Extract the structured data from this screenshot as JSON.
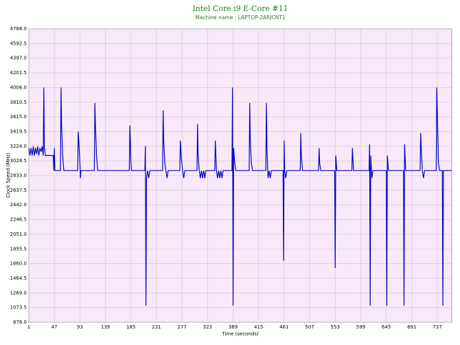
{
  "chart_data": {
    "type": "line",
    "title": "Intel Core i9 E-Core #11",
    "subtitle": "Machine name : LAPTOP-2ARJCNT1",
    "x_label": "Time (seconds)",
    "y_label": "Clock Speed (MHz)",
    "xlim": [
      1,
      763
    ],
    "xticks": [
      1,
      47,
      93,
      139,
      185,
      231,
      277,
      323,
      369,
      415,
      461,
      507,
      553,
      599,
      645,
      691,
      737
    ],
    "ylim": [
      878,
      4788
    ],
    "yticks": [
      {
        "value": 878,
        "label": "878.0"
      },
      1073.5,
      {
        "value": 1269,
        "label": "1269.0"
      },
      1464.5,
      {
        "value": 1660,
        "label": "1660.0"
      },
      1855.5,
      {
        "value": 2051,
        "label": "2051.0"
      },
      2246.5,
      {
        "value": 2442,
        "label": "2442.0"
      },
      2637.5,
      {
        "value": 2833,
        "label": "2833.0"
      },
      3028.5,
      {
        "value": 3224,
        "label": "3224.0"
      },
      3419.5,
      {
        "value": 3615,
        "label": "3615.0"
      },
      3810.5,
      {
        "value": 4006,
        "label": "4006.0"
      },
      4201.5,
      {
        "value": 4397,
        "label": "4397.0"
      },
      4592.5,
      {
        "value": 4788,
        "label": "4788.0"
      }
    ],
    "grid": true,
    "x": [
      1,
      3,
      5,
      7,
      9,
      11,
      13,
      15,
      17,
      19,
      21,
      23,
      25,
      27,
      28,
      29,
      31,
      45,
      46,
      47,
      48,
      58,
      59,
      60,
      62,
      64,
      89,
      90,
      91,
      93,
      94,
      95,
      119,
      120,
      121,
      123,
      125,
      182,
      183,
      185,
      186,
      210,
      211,
      212,
      213,
      215,
      217,
      219,
      242,
      243,
      244,
      246,
      248,
      250,
      252,
      273,
      274,
      276,
      278,
      280,
      282,
      304,
      305,
      306,
      308,
      310,
      312,
      314,
      316,
      318,
      320,
      336,
      337,
      339,
      341,
      343,
      345,
      347,
      349,
      351,
      367,
      368,
      369,
      370,
      372,
      374,
      398,
      399,
      400,
      402,
      404,
      428,
      429,
      430,
      432,
      434,
      436,
      438,
      459,
      460,
      461,
      462,
      464,
      466,
      490,
      491,
      492,
      494,
      523,
      524,
      525,
      527,
      552,
      553,
      554,
      556,
      583,
      584,
      586,
      614,
      615,
      616,
      617,
      619,
      621,
      645,
      646,
      647,
      649,
      676,
      677,
      678,
      680,
      706,
      707,
      708,
      710,
      712,
      714,
      735,
      736,
      737,
      739,
      741,
      746,
      747,
      748,
      763
    ],
    "series": [
      {
        "name": "Clock Speed",
        "color": "#0000c0",
        "values": [
          3200,
          3100,
          3200,
          3100,
          3220,
          3100,
          3200,
          3120,
          3220,
          3100,
          3200,
          3150,
          3220,
          3100,
          4006,
          3200,
          3100,
          3100,
          2900,
          3200,
          2900,
          2900,
          4006,
          3500,
          3100,
          2900,
          2900,
          3420,
          3300,
          3000,
          2800,
          2900,
          2900,
          3800,
          3500,
          3100,
          2900,
          2900,
          3500,
          3000,
          2900,
          2900,
          3224,
          1100,
          2800,
          2900,
          2800,
          2900,
          2900,
          3700,
          3300,
          3000,
          2900,
          2800,
          2900,
          2900,
          3300,
          3050,
          2900,
          2800,
          2900,
          2900,
          3520,
          3100,
          2900,
          2800,
          2900,
          2800,
          2900,
          2800,
          2900,
          2900,
          3300,
          2900,
          2800,
          2900,
          2800,
          2900,
          2800,
          2900,
          2900,
          4006,
          1100,
          3200,
          3000,
          2900,
          2900,
          3800,
          3300,
          3000,
          2900,
          2900,
          3800,
          3200,
          2800,
          2900,
          2800,
          2900,
          2900,
          1700,
          3300,
          2900,
          2800,
          2900,
          2900,
          3400,
          3100,
          2900,
          2900,
          3200,
          3000,
          2900,
          2900,
          1600,
          3100,
          2900,
          2900,
          3200,
          2900,
          2900,
          3250,
          1100,
          3100,
          2800,
          2900,
          2900,
          1100,
          3100,
          2900,
          2900,
          1100,
          3250,
          2900,
          2900,
          3400,
          3200,
          2900,
          2800,
          2900,
          2900,
          4006,
          3700,
          3000,
          2900,
          2900,
          1100,
          2900,
          2900
        ]
      }
    ]
  }
}
